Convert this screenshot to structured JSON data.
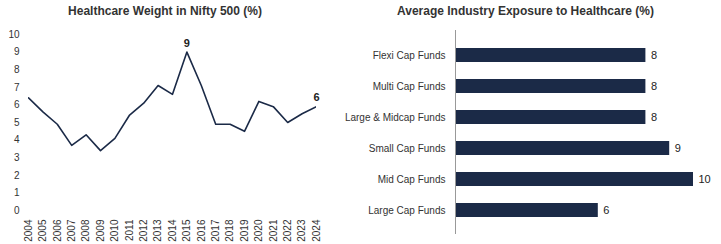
{
  "chart_data": [
    {
      "type": "line",
      "title": "Healthcare Weight in Nifty 500 (%)",
      "x": [
        2004,
        2005,
        2006,
        2007,
        2008,
        2009,
        2010,
        2011,
        2012,
        2013,
        2014,
        2015,
        2016,
        2017,
        2018,
        2019,
        2020,
        2021,
        2022,
        2023,
        2024
      ],
      "values": [
        6.4,
        5.6,
        4.9,
        3.7,
        4.3,
        3.4,
        4.1,
        5.4,
        6.1,
        7.1,
        6.6,
        9.0,
        7.1,
        4.9,
        4.9,
        4.5,
        6.2,
        5.9,
        5.0,
        5.5,
        5.9
      ],
      "color": "#1b2a47",
      "xlim": [
        2004,
        2024
      ],
      "xticks": [
        2004,
        2005,
        2006,
        2007,
        2008,
        2009,
        2010,
        2011,
        2012,
        2013,
        2014,
        2015,
        2016,
        2017,
        2018,
        2019,
        2020,
        2021,
        2022,
        2023,
        2024
      ],
      "ylim": [
        0,
        10
      ],
      "yticks": [
        0,
        1,
        2,
        3,
        4,
        5,
        6,
        7,
        8,
        9,
        10
      ],
      "grid": false,
      "annotations": [
        {
          "x": 2015,
          "text": "9"
        },
        {
          "x": 2024,
          "text": "6"
        }
      ]
    },
    {
      "type": "bar",
      "title": "Average Industry Exposure to Healthcare (%)",
      "orientation": "horizontal",
      "categories": [
        "Flexi Cap Funds",
        "Multi Cap Funds",
        "Large & Midcap Funds",
        "Small Cap Funds",
        "Mid Cap Funds",
        "Large Cap Funds"
      ],
      "values": [
        8,
        8,
        8,
        9,
        10,
        6
      ],
      "color": "#1b2a47",
      "data_labels": true,
      "tick_labels": "y",
      "grid": false
    }
  ]
}
